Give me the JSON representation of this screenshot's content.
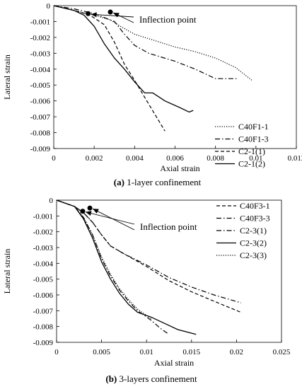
{
  "chart_data": [
    {
      "id": "a",
      "type": "line",
      "caption_label": "(a)",
      "caption_text": " 1-layer confinement",
      "xlabel": "Axial strain",
      "ylabel": "Lateral strain",
      "xlim": [
        0,
        0.012
      ],
      "ylim": [
        -0.009,
        0
      ],
      "xticks": [
        0,
        0.002,
        0.004,
        0.006,
        0.008,
        0.01,
        0.012
      ],
      "xtick_labels": [
        "0",
        "0.002",
        "0.004",
        "0.006",
        "0.008",
        "0.01",
        "0.012"
      ],
      "yticks": [
        0,
        -0.001,
        -0.002,
        -0.003,
        -0.004,
        -0.005,
        -0.006,
        -0.007,
        -0.008,
        -0.009
      ],
      "ytick_labels": [
        "0",
        "-0.001",
        "-0.002",
        "-0.003",
        "-0.004",
        "-0.005",
        "-0.006",
        "-0.007",
        "-0.008",
        "-0.009"
      ],
      "grid": false,
      "legend_position": "bottom-right",
      "annotation": "Inflection point",
      "series": [
        {
          "name": "C40F1-1",
          "style": "dotted",
          "points": [
            [
              0,
              0
            ],
            [
              0.001,
              -0.0003
            ],
            [
              0.002,
              -0.0006
            ],
            [
              0.0028,
              -0.0009
            ],
            [
              0.0033,
              -0.0013
            ],
            [
              0.004,
              -0.0018
            ],
            [
              0.005,
              -0.0022
            ],
            [
              0.006,
              -0.0026
            ],
            [
              0.007,
              -0.0029
            ],
            [
              0.008,
              -0.0033
            ],
            [
              0.009,
              -0.0039
            ],
            [
              0.0098,
              -0.0047
            ]
          ]
        },
        {
          "name": "C40F1-3",
          "style": "dashdot",
          "points": [
            [
              0,
              0
            ],
            [
              0.001,
              -0.0002
            ],
            [
              0.002,
              -0.0005
            ],
            [
              0.003,
              -0.001
            ],
            [
              0.0035,
              -0.0018
            ],
            [
              0.004,
              -0.0025
            ],
            [
              0.0047,
              -0.003
            ],
            [
              0.006,
              -0.0035
            ],
            [
              0.007,
              -0.004
            ],
            [
              0.008,
              -0.0046
            ],
            [
              0.0091,
              -0.0046
            ]
          ]
        },
        {
          "name": "C2-1(1)",
          "style": "dashed",
          "points": [
            [
              0,
              0
            ],
            [
              0.001,
              -0.0003
            ],
            [
              0.0018,
              -0.0006
            ],
            [
              0.0025,
              -0.0012
            ],
            [
              0.003,
              -0.0023
            ],
            [
              0.0035,
              -0.0037
            ],
            [
              0.004,
              -0.0047
            ],
            [
              0.0047,
              -0.0062
            ],
            [
              0.0055,
              -0.0079
            ]
          ]
        },
        {
          "name": "C2-1(2)",
          "style": "solid",
          "points": [
            [
              0,
              0
            ],
            [
              0.001,
              -0.0003
            ],
            [
              0.0015,
              -0.0006
            ],
            [
              0.002,
              -0.0013
            ],
            [
              0.0025,
              -0.0024
            ],
            [
              0.003,
              -0.0033
            ],
            [
              0.0035,
              -0.004
            ],
            [
              0.004,
              -0.0048
            ],
            [
              0.0045,
              -0.0055
            ],
            [
              0.0049,
              -0.0055
            ],
            [
              0.0055,
              -0.006
            ],
            [
              0.0062,
              -0.0064
            ],
            [
              0.0067,
              -0.0067
            ],
            [
              0.0069,
              -0.0066
            ]
          ]
        }
      ],
      "markers": [
        [
          0.0017,
          -0.0005
        ],
        [
          0.0028,
          -0.0004
        ]
      ]
    },
    {
      "id": "b",
      "type": "line",
      "caption_label": "(b)",
      "caption_text": " 3-layers confinement",
      "xlabel": "Axial strain",
      "ylabel": "Lateral strain",
      "xlim": [
        0,
        0.025
      ],
      "ylim": [
        -0.009,
        0
      ],
      "xticks": [
        0,
        0.005,
        0.01,
        0.015,
        0.02,
        0.025
      ],
      "xtick_labels": [
        "0",
        "0.005",
        "0.01",
        "0.015",
        "0.02",
        "0.025"
      ],
      "yticks": [
        0,
        -0.001,
        -0.002,
        -0.003,
        -0.004,
        -0.005,
        -0.006,
        -0.007,
        -0.008,
        -0.009
      ],
      "ytick_labels": [
        "0",
        "-0.001",
        "-0.002",
        "-0.003",
        "-0.004",
        "-0.005",
        "-0.006",
        "-0.007",
        "-0.008",
        "-0.009"
      ],
      "grid": false,
      "legend_position": "top-right",
      "annotation": "Inflection point",
      "series": [
        {
          "name": "C40F3-1",
          "style": "dashed",
          "points": [
            [
              0,
              0
            ],
            [
              0.002,
              -0.0004
            ],
            [
              0.003,
              -0.0008
            ],
            [
              0.004,
              -0.0014
            ],
            [
              0.005,
              -0.0022
            ],
            [
              0.006,
              -0.0029
            ],
            [
              0.0075,
              -0.0034
            ],
            [
              0.01,
              -0.0042
            ],
            [
              0.0125,
              -0.0051
            ],
            [
              0.015,
              -0.0058
            ],
            [
              0.0175,
              -0.0064
            ],
            [
              0.0205,
              -0.0071
            ]
          ]
        },
        {
          "name": "C40F3-3",
          "style": "dashdot",
          "points": [
            [
              0,
              0
            ],
            [
              0.002,
              -0.0004
            ],
            [
              0.003,
              -0.0008
            ],
            [
              0.004,
              -0.0014
            ],
            [
              0.005,
              -0.0022
            ],
            [
              0.006,
              -0.0029
            ],
            [
              0.0075,
              -0.0034
            ],
            [
              0.01,
              -0.0041
            ],
            [
              0.0125,
              -0.0049
            ],
            [
              0.015,
              -0.0055
            ],
            [
              0.0175,
              -0.006
            ],
            [
              0.0205,
              -0.0065
            ]
          ]
        },
        {
          "name": "C2-3(1)",
          "style": "dashdot",
          "points": [
            [
              0,
              0
            ],
            [
              0.002,
              -0.0004
            ],
            [
              0.003,
              -0.0011
            ],
            [
              0.004,
              -0.0022
            ],
            [
              0.005,
              -0.0037
            ],
            [
              0.006,
              -0.0048
            ],
            [
              0.007,
              -0.0057
            ],
            [
              0.008,
              -0.0064
            ],
            [
              0.009,
              -0.007
            ],
            [
              0.0105,
              -0.0076
            ],
            [
              0.0115,
              -0.0081
            ],
            [
              0.0125,
              -0.0085
            ]
          ]
        },
        {
          "name": "C2-3(2)",
          "style": "solid",
          "points": [
            [
              0,
              0
            ],
            [
              0.002,
              -0.0004
            ],
            [
              0.003,
              -0.0012
            ],
            [
              0.004,
              -0.0024
            ],
            [
              0.005,
              -0.0039
            ],
            [
              0.006,
              -0.005
            ],
            [
              0.007,
              -0.0059
            ],
            [
              0.008,
              -0.0066
            ],
            [
              0.009,
              -0.0071
            ],
            [
              0.0105,
              -0.0074
            ],
            [
              0.012,
              -0.0078
            ],
            [
              0.0135,
              -0.0082
            ],
            [
              0.0155,
              -0.0085
            ]
          ]
        },
        {
          "name": "C2-3(3)",
          "style": "dotted",
          "points": [
            [
              0,
              0
            ],
            [
              0.002,
              -0.0004
            ],
            [
              0.003,
              -0.0011
            ],
            [
              0.004,
              -0.0022
            ],
            [
              0.005,
              -0.0036
            ],
            [
              0.006,
              -0.0047
            ],
            [
              0.007,
              -0.0056
            ],
            [
              0.008,
              -0.0063
            ],
            [
              0.009,
              -0.0069
            ],
            [
              0.0105,
              -0.0075
            ]
          ]
        }
      ],
      "markers": [
        [
          0.0029,
          -0.0007
        ],
        [
          0.0037,
          -0.0005
        ]
      ]
    }
  ]
}
